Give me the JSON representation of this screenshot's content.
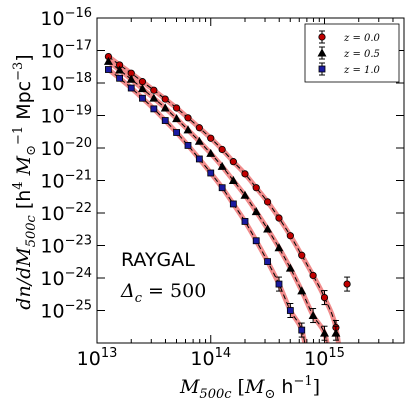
{
  "chart_data": {
    "type": "scatter",
    "xlabel_math": "M",
    "xlabel_sub": "500c",
    "xlabel_unit_open": " [",
    "xlabel_unit_m": "M",
    "xlabel_unit_sun": "⊙",
    "xlabel_unit_rest": " h",
    "xlabel_unit_exp": "−1",
    "xlabel_unit_close": "]",
    "ylabel_lhs": "dn/dM",
    "ylabel_lhs_sub": "500c",
    "ylabel_rhs_open": " [h",
    "ylabel_rhs_exp4": "4",
    "ylabel_rhs_m": " M",
    "ylabel_rhs_sun": "⊙",
    "ylabel_rhs_exp_m1": "−1",
    "ylabel_rhs_mpc": " Mpc",
    "ylabel_rhs_exp_m3": "−3",
    "ylabel_rhs_close": "]",
    "xscale": "log",
    "yscale": "log",
    "xlim": [
      10000000000000.0,
      5000000000000000.0
    ],
    "ylim": [
      1e-26,
      1e-16
    ],
    "x_ticks": [
      {
        "base": "10",
        "exp": "13",
        "value": 10000000000000.0
      },
      {
        "base": "10",
        "exp": "14",
        "value": 100000000000000.0
      },
      {
        "base": "10",
        "exp": "15",
        "value": 1000000000000000.0
      }
    ],
    "y_ticks": [
      {
        "base": "10",
        "exp": "−16",
        "value": 1e-16
      },
      {
        "base": "10",
        "exp": "−17",
        "value": 1e-17
      },
      {
        "base": "10",
        "exp": "−18",
        "value": 1e-18
      },
      {
        "base": "10",
        "exp": "−19",
        "value": 1e-19
      },
      {
        "base": "10",
        "exp": "−20",
        "value": 1e-20
      },
      {
        "base": "10",
        "exp": "−21",
        "value": 1e-21
      },
      {
        "base": "10",
        "exp": "−22",
        "value": 1e-22
      },
      {
        "base": "10",
        "exp": "−23",
        "value": 1e-23
      },
      {
        "base": "10",
        "exp": "−24",
        "value": 1e-24
      },
      {
        "base": "10",
        "exp": "−25",
        "value": 1e-25
      }
    ],
    "legend_position": "top-right",
    "annotation_line1": "RAYGAL",
    "annotation_delta": "Δ",
    "annotation_sub": "c",
    "annotation_eq": " = 500",
    "model_band_color": "#f08080",
    "model_line_color": "#000000",
    "series": [
      {
        "name": "z = 0.0",
        "marker": "circle",
        "color": "#c00000",
        "x": [
          12600000000000.0,
          15800000000000.0,
          20000000000000.0,
          25100000000000.0,
          31600000000000.0,
          39800000000000.0,
          50100000000000.0,
          63100000000000.0,
          79400000000000.0,
          100000000000000.0,
          126000000000000.0,
          158000000000000.0,
          200000000000000.0,
          251000000000000.0,
          316000000000000.0,
          398000000000000.0,
          501000000000000.0,
          631000000000000.0,
          794000000000000.0,
          1000000000000000.0,
          1260000000000000.0,
          1580000000000000.0
        ],
        "y": [
          6.5e-18,
          3.6e-18,
          2e-18,
          1.1e-18,
          6e-19,
          3.2e-19,
          1.7e-19,
          8.5e-20,
          4.2e-20,
          2e-20,
          9e-21,
          3.8e-21,
          1.6e-21,
          6e-22,
          2.2e-22,
          7e-23,
          2e-23,
          5e-24,
          1.2e-24,
          2.5e-25,
          3e-26,
          6.5e-25
        ]
      },
      {
        "name": "z = 0.5",
        "marker": "triangle",
        "color": "#000000",
        "x": [
          12600000000000.0,
          15800000000000.0,
          20000000000000.0,
          25100000000000.0,
          31600000000000.0,
          39800000000000.0,
          50100000000000.0,
          63100000000000.0,
          79400000000000.0,
          100000000000000.0,
          126000000000000.0,
          158000000000000.0,
          200000000000000.0,
          251000000000000.0,
          316000000000000.0,
          398000000000000.0,
          501000000000000.0,
          631000000000000.0,
          794000000000000.0,
          1000000000000000.0,
          1260000000000000.0
        ],
        "y": [
          4.6e-18,
          2.5e-18,
          1.3e-18,
          6.7e-19,
          3.4e-19,
          1.7e-19,
          8e-20,
          3.6e-20,
          1.6e-20,
          6.8e-21,
          2.7e-21,
          1e-21,
          3.5e-22,
          1.1e-22,
          3.2e-23,
          8.5e-24,
          2e-24,
          4e-25,
          7e-26,
          2e-26,
          2e-26
        ]
      },
      {
        "name": "z = 1.0",
        "marker": "square",
        "color": "#1a1aa0",
        "x": [
          12600000000000.0,
          15800000000000.0,
          20000000000000.0,
          25100000000000.0,
          31600000000000.0,
          39800000000000.0,
          50100000000000.0,
          63100000000000.0,
          79400000000000.0,
          100000000000000.0,
          126000000000000.0,
          158000000000000.0,
          200000000000000.0,
          251000000000000.0,
          316000000000000.0,
          398000000000000.0,
          501000000000000.0,
          631000000000000.0
        ],
        "y": [
          2.6e-18,
          1.4e-18,
          7e-19,
          3.4e-19,
          1.6e-19,
          7e-20,
          3e-20,
          1.2e-20,
          4.6e-21,
          1.7e-21,
          6e-22,
          1.9e-22,
          5.5e-23,
          1.4e-23,
          3.2e-24,
          6.5e-25,
          1e-25,
          2.5e-26
        ]
      }
    ]
  }
}
